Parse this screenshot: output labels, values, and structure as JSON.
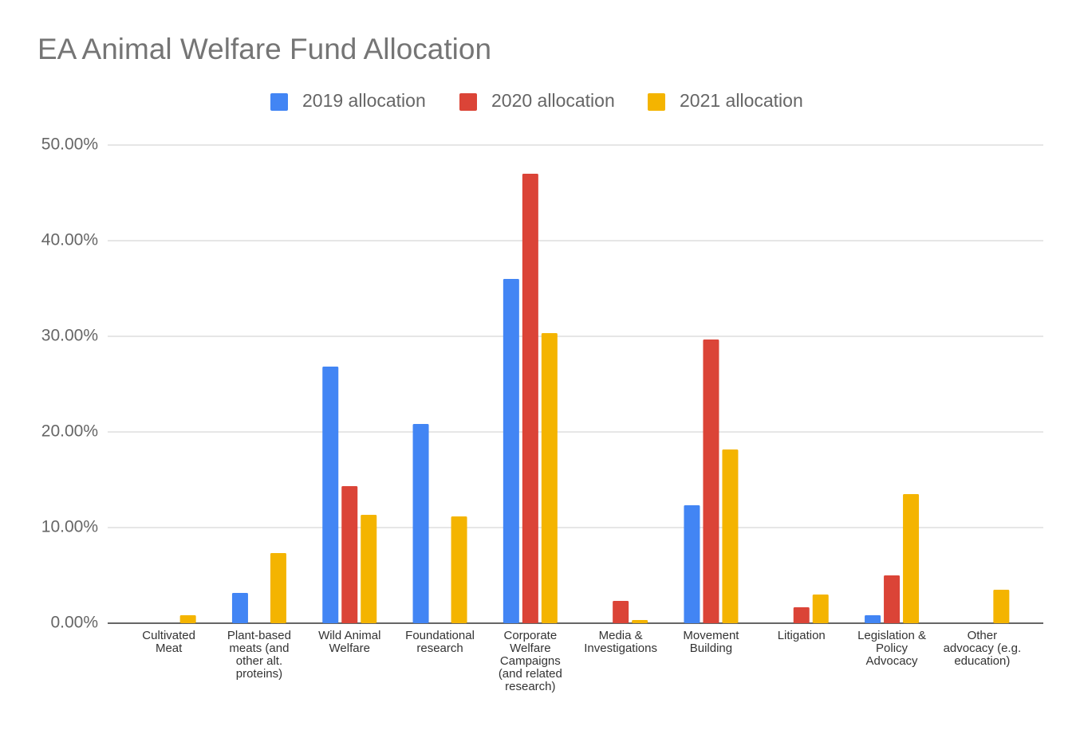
{
  "chart_data": {
    "type": "bar",
    "title": "EA Animal Welfare Fund Allocation",
    "categories": [
      "Cultivated Meat",
      "Plant-based meats (and other alt. proteins)",
      "Wild Animal Welfare",
      "Foundational research",
      "Corporate Welfare Campaigns (and related research)",
      "Media & Investigations",
      "Movement Building",
      "Litigation",
      "Legislation & Policy Advocacy",
      "Other advocacy (e.g. education)"
    ],
    "series": [
      {
        "name": "2019 allocation",
        "color": "#4285f4",
        "values": [
          0,
          3.17,
          26.83,
          20.83,
          36,
          0,
          12.33,
          0,
          0.83,
          0
        ]
      },
      {
        "name": "2020 allocation",
        "color": "#db4437",
        "values": [
          0,
          0,
          14.33,
          0,
          47,
          2.33,
          29.67,
          1.67,
          5,
          0
        ]
      },
      {
        "name": "2021 allocation",
        "color": "#f4b400",
        "values": [
          0.83,
          7.33,
          11.33,
          11.17,
          30.33,
          0.33,
          18.17,
          3,
          13.5,
          3.5
        ]
      }
    ],
    "ylim": [
      0,
      50
    ],
    "yticks": [
      {
        "value": 0,
        "label": "0.00%"
      },
      {
        "value": 10,
        "label": "10.00%"
      },
      {
        "value": 20,
        "label": "20.00%"
      },
      {
        "value": 30,
        "label": "30.00%"
      },
      {
        "value": 40,
        "label": "40.00%"
      },
      {
        "value": 50,
        "label": "50.00%"
      }
    ],
    "grid": true,
    "legend": "top"
  }
}
